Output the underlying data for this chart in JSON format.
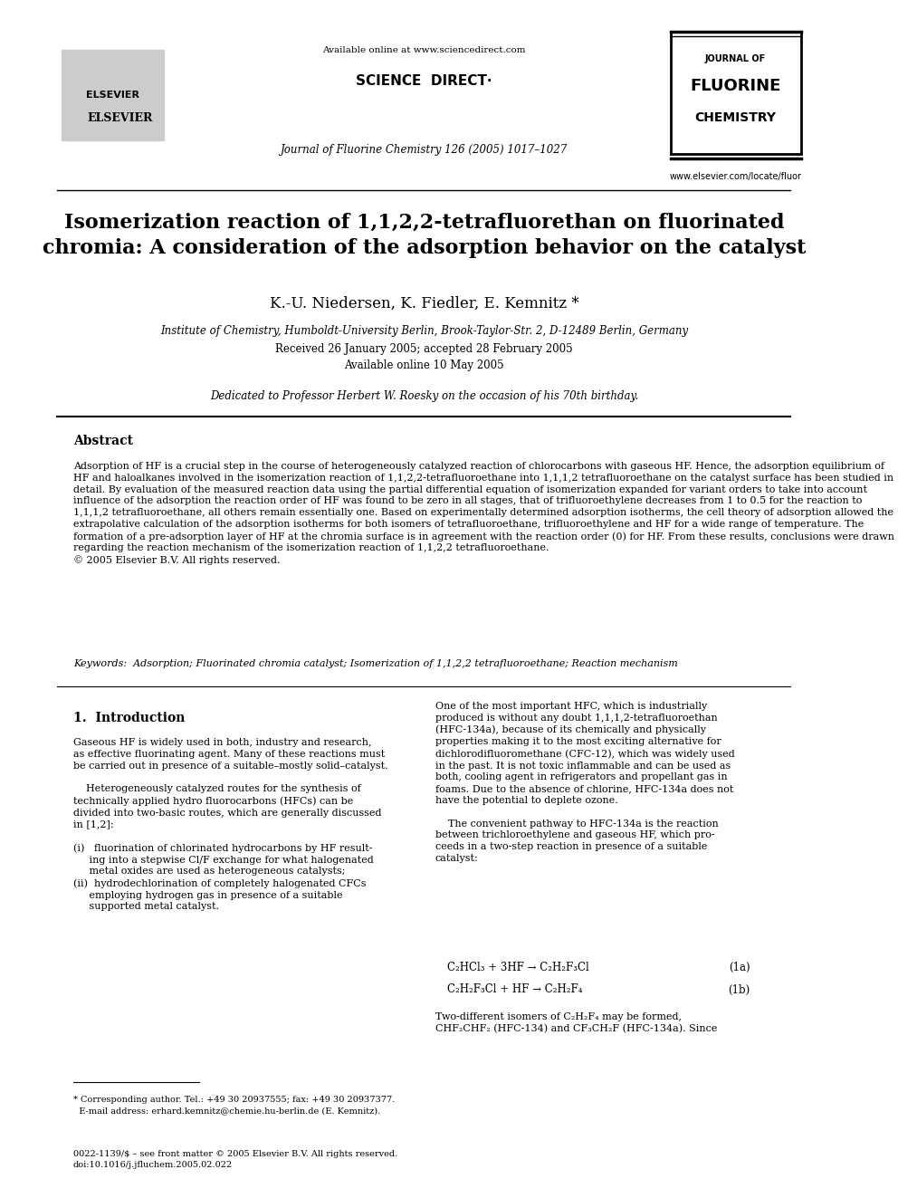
{
  "bg_color": "#ffffff",
  "header_line_color": "#000000",
  "title_text": "Isomerization reaction of 1,1,2,2-tetrafluorethan on fluorinated\nchromia: A consideration of the adsorption behavior on the catalyst",
  "authors_text": "K.-U. Niedersen, K. Fiedler, E. Kemnitz *",
  "affiliation_text": "Institute of Chemistry, Humboldt-University Berlin, Brook-Taylor-Str. 2, D-12489 Berlin, Germany",
  "dates_text": "Received 26 January 2005; accepted 28 February 2005\nAvailable online 10 May 2005",
  "dedication_text": "Dedicated to Professor Herbert W. Roesky on the occasion of his 70th birthday.",
  "available_online_text": "Available online at www.sciencedirect.com",
  "journal_ref_text": "Journal of Fluorine Chemistry 126 (2005) 1017–1027",
  "website_text": "www.elsevier.com/locate/fluor",
  "abstract_title": "Abstract",
  "abstract_text": "Adsorption of HF is a crucial step in the course of heterogeneously catalyzed reaction of chlorocarbons with gaseous HF. Hence, the adsorption equilibrium of HF and haloalkanes involved in the isomerization reaction of 1,1,2,2-tetrafluoroethane into 1,1,1,2 tetrafluoroethane on the catalyst surface has been studied in detail. By evaluation of the measured reaction data using the partial differential equation of isomerization expanded for variant orders to take into account influence of the adsorption the reaction order of HF was found to be zero in all stages, that of trifluoroethylene decreases from 1 to 0.5 for the reaction to 1,1,1,2 tetrafluoroethane, all others remain essentially one. Based on experimentally determined adsorption isotherms, the cell theory of adsorption allowed the extrapolative calculation of the adsorption isotherms for both isomers of tetrafluoroethane, trifluoroethylene and HF for a wide range of temperature. The formation of a pre-adsorption layer of HF at the chromia surface is in agreement with the reaction order (0) for HF. From these results, conclusions were drawn regarding the reaction mechanism of the isomerization reaction of 1,1,2,2 tetrafluoroethane.\n© 2005 Elsevier B.V. All rights reserved.",
  "keywords_text": "Keywords:  Adsorption; Fluorinated chromia catalyst; Isomerization of 1,1,2,2 tetrafluoroethane; Reaction mechanism",
  "section1_title": "1.  Introduction",
  "section1_left": "Gaseous HF is widely used in both, industry and research, as effective fluorinating agent. Many of these reactions must be carried out in presence of a suitable–mostly solid–catalyst.\n\n    Heterogeneously catalyzed routes for the synthesis of technically applied hydro fluorocarbons (HFCs) can be divided into two-basic routes, which are generally discussed in [1,2]:\n\n(i)   fluorination of chlorinated hydrocarbons by HF result-\n     ing into a stepwise Cl/F exchange for what halogenated\n     metal oxides are used as heterogeneous catalysts;\n(ii)  hydrodechlorination of completely halogenated CFCs\n     employing hydrogen gas in presence of a suitable\n     supported metal catalyst.",
  "section1_right": "One of the most important HFC, which is industrially produced is without any doubt 1,1,1,2-tetrafluoroethan (HFC-134a), because of its chemically and physically properties making it to the most exciting alternative for dichlorodifluoromethane (CFC-12), which was widely used in the past. It is not toxic inflammable and can be used as both, cooling agent in refrigerators and propellant gas in foams. Due to the absence of chlorine, HFC-134a does not have the potential to deplete ozone.\n\n    The convenient pathway to HFC-134a is the reaction between trichloroethylene and gaseous HF, which proceeds in a two-step reaction in presence of a suitable catalyst:",
  "reaction1a": "C₂HCl₃ + 3HF → C₂H₂F₃Cl                                    (1a)",
  "reaction1b": "C₂H₂F₃Cl + HF → C₂H₂F₄                                    (1b)",
  "section1_right2": "Two-different isomers of C₂H₂F₄ may be formed, CHF₂CHF₂ (HFC-134) and CF₃CH₂F (HFC-134a). Since",
  "footnote_star": "* Corresponding author. Tel.: +49 30 20937555; fax: +49 30 20937377.\n  E-mail address: erhard.kemnitz@chemie.hu-berlin.de (E. Kemnitz).",
  "footnote_bottom": "0022-1139/$ – see front matter © 2005 Elsevier B.V. All rights reserved.\ndoi:10.1016/j.jfluchem.2005.02.022"
}
